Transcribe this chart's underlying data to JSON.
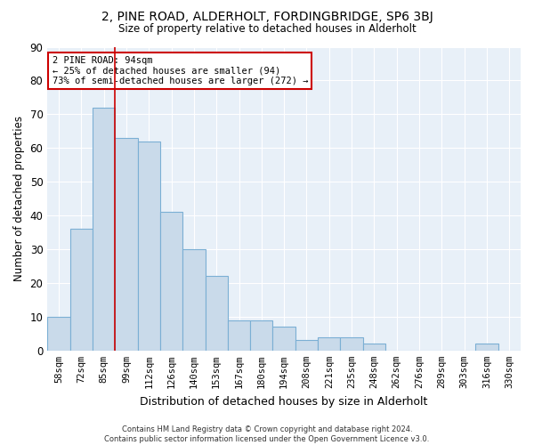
{
  "title_line1": "2, PINE ROAD, ALDERHOLT, FORDINGBRIDGE, SP6 3BJ",
  "title_line2": "Size of property relative to detached houses in Alderholt",
  "xlabel": "Distribution of detached houses by size in Alderholt",
  "ylabel": "Number of detached properties",
  "categories": [
    "58sqm",
    "72sqm",
    "85sqm",
    "99sqm",
    "112sqm",
    "126sqm",
    "140sqm",
    "153sqm",
    "167sqm",
    "180sqm",
    "194sqm",
    "208sqm",
    "221sqm",
    "235sqm",
    "248sqm",
    "262sqm",
    "276sqm",
    "289sqm",
    "303sqm",
    "316sqm",
    "330sqm"
  ],
  "values": [
    10,
    36,
    72,
    63,
    62,
    41,
    30,
    22,
    9,
    9,
    7,
    3,
    4,
    4,
    2,
    0,
    0,
    0,
    0,
    2,
    0
  ],
  "bar_color": "#c9daea",
  "bar_edge_color": "#7bafd4",
  "background_color": "#e8f0f8",
  "grid_color": "#ffffff",
  "annotation_line1": "2 PINE ROAD: 94sqm",
  "annotation_line2": "← 25% of detached houses are smaller (94)",
  "annotation_line3": "73% of semi-detached houses are larger (272) →",
  "annotation_box_color": "#cc0000",
  "marker_line_index": 2,
  "ylim": [
    0,
    90
  ],
  "yticks": [
    0,
    10,
    20,
    30,
    40,
    50,
    60,
    70,
    80,
    90
  ],
  "footnote1": "Contains HM Land Registry data © Crown copyright and database right 2024.",
  "footnote2": "Contains public sector information licensed under the Open Government Licence v3.0."
}
